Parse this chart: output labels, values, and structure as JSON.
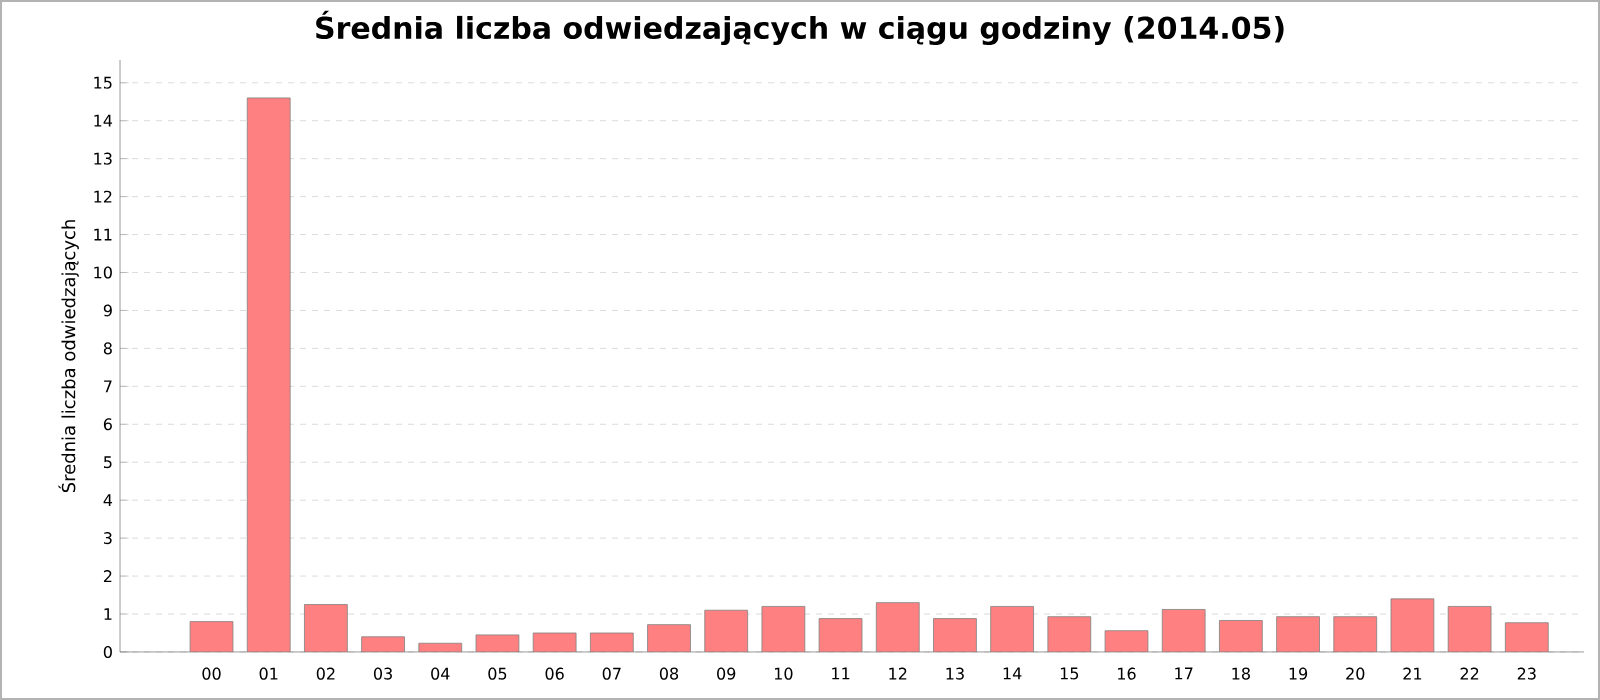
{
  "chart_data": {
    "type": "bar",
    "title": "Średnia liczba odwiedzających w ciągu godziny (2014.05)",
    "ylabel": "Średnia liczba odwiedzających",
    "categories": [
      "00",
      "01",
      "02",
      "03",
      "04",
      "05",
      "06",
      "07",
      "08",
      "09",
      "10",
      "11",
      "12",
      "13",
      "14",
      "15",
      "16",
      "17",
      "18",
      "19",
      "20",
      "21",
      "22",
      "23"
    ],
    "values": [
      0.8,
      14.6,
      1.25,
      0.4,
      0.23,
      0.45,
      0.5,
      0.5,
      0.72,
      1.1,
      1.2,
      0.88,
      1.3,
      0.88,
      1.2,
      0.93,
      0.56,
      1.12,
      0.83,
      0.93,
      0.93,
      1.4,
      1.2,
      0.77
    ],
    "color": "#ff8080",
    "ylim": [
      0,
      15.6
    ],
    "yticks": [
      0,
      1,
      2,
      3,
      4,
      5,
      6,
      7,
      8,
      9,
      10,
      11,
      12,
      13,
      14,
      15
    ],
    "grid": "y"
  }
}
